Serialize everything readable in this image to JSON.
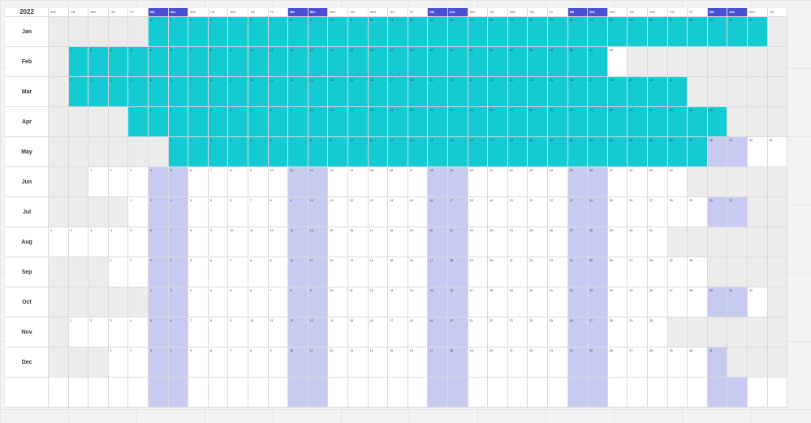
{
  "year": "2022",
  "weekday_headers": [
    "Mon",
    "Tue",
    "Wed",
    "Thu",
    "Fri",
    "Sat",
    "Sun",
    "Mon",
    "Tue",
    "Wed",
    "Thu",
    "Fri",
    "Sat",
    "Sun",
    "Mon",
    "Tue",
    "Wed",
    "Thu",
    "Fri",
    "Sat",
    "Sun",
    "Mon",
    "Tue",
    "Wed",
    "Thu",
    "Fri",
    "Sat",
    "Sun",
    "Mon",
    "Tue",
    "Wed",
    "Thu",
    "Fri",
    "Sat",
    "Sun",
    "Mon",
    "Tue"
  ],
  "weekend_columns": [
    5,
    6,
    12,
    13,
    19,
    20,
    26,
    27,
    33,
    34
  ],
  "months": [
    {
      "label": "Jan",
      "start_col": 5,
      "days": 31,
      "highlighted_through": 31
    },
    {
      "label": "Feb",
      "start_col": 1,
      "days": 28,
      "highlighted_through": 27
    },
    {
      "label": "Mar",
      "start_col": 1,
      "days": 31,
      "highlighted_through": 31
    },
    {
      "label": "Apr",
      "start_col": 4,
      "days": 30,
      "highlighted_through": 30
    },
    {
      "label": "May",
      "start_col": 6,
      "days": 31,
      "highlighted_through": 27
    },
    {
      "label": "Jun",
      "start_col": 2,
      "days": 30,
      "highlighted_through": 0
    },
    {
      "label": "Jul",
      "start_col": 4,
      "days": 31,
      "highlighted_through": 0
    },
    {
      "label": "Aug",
      "start_col": 0,
      "days": 31,
      "highlighted_through": 0
    },
    {
      "label": "Sep",
      "start_col": 3,
      "days": 30,
      "highlighted_through": 0
    },
    {
      "label": "Oct",
      "start_col": 5,
      "days": 31,
      "highlighted_through": 0
    },
    {
      "label": "Nov",
      "start_col": 1,
      "days": 30,
      "highlighted_through": 0
    },
    {
      "label": "Dec",
      "start_col": 3,
      "days": 31,
      "highlighted_through": 0
    },
    {
      "label": "",
      "start_col": 0,
      "days": 0,
      "highlighted_through": 0
    }
  ],
  "colors": {
    "highlight": "#14cbd4",
    "weekend_header": "#4a4fd6",
    "weekend_cell": "#c8cbf1",
    "empty_cell": "#ececec"
  }
}
